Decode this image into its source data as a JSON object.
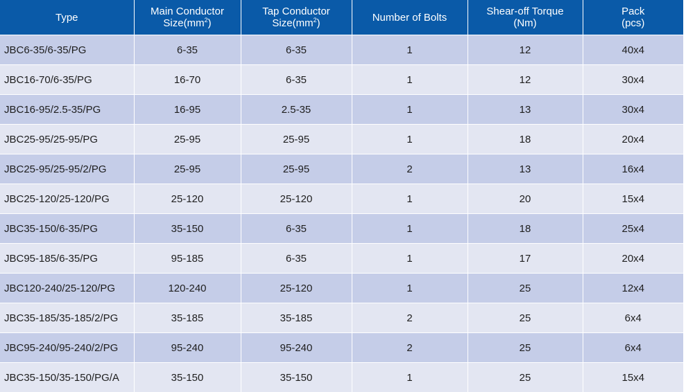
{
  "headers": {
    "type": "Type",
    "main_line1": "Main Conductor",
    "main_line2": "Size(mm",
    "tap_line1": "Tap Conductor",
    "tap_line2": "Size(mm",
    "squared": "2",
    "close_paren": ")",
    "bolts": "Number of Bolts",
    "torque_line1": "Shear-off Torque",
    "torque_line2": "(Nm)",
    "pack_line1": "Pack",
    "pack_line2": "(pcs)"
  },
  "rows": [
    [
      "JBC6-35/6-35/PG",
      "6-35",
      "6-35",
      "1",
      "12",
      "40x4"
    ],
    [
      "JBC16-70/6-35/PG",
      "16-70",
      "6-35",
      "1",
      "12",
      "30x4"
    ],
    [
      "JBC16-95/2.5-35/PG",
      "16-95",
      "2.5-35",
      "1",
      "13",
      "30x4"
    ],
    [
      "JBC25-95/25-95/PG",
      "25-95",
      "25-95",
      "1",
      "18",
      "20x4"
    ],
    [
      "JBC25-95/25-95/2/PG",
      "25-95",
      "25-95",
      "2",
      "13",
      "16x4"
    ],
    [
      "JBC25-120/25-120/PG",
      "25-120",
      "25-120",
      "1",
      "20",
      "15x4"
    ],
    [
      "JBC35-150/6-35/PG",
      "35-150",
      "6-35",
      "1",
      "18",
      "25x4"
    ],
    [
      "JBC95-185/6-35/PG",
      "95-185",
      "6-35",
      "1",
      "17",
      "20x4"
    ],
    [
      "JBC120-240/25-120/PG",
      "120-240",
      "25-120",
      "1",
      "25",
      "12x4"
    ],
    [
      "JBC35-185/35-185/2/PG",
      "35-185",
      "35-185",
      "2",
      "25",
      "6x4"
    ],
    [
      "JBC95-240/95-240/2/PG",
      "95-240",
      "95-240",
      "2",
      "25",
      "6x4"
    ],
    [
      "JBC35-150/35-150/PG/A",
      "35-150",
      "35-150",
      "1",
      "25",
      "15x4"
    ]
  ],
  "colors": {
    "header_bg": "#0a5aa8",
    "row_odd": "#c5cde8",
    "row_even": "#e3e6f2"
  }
}
